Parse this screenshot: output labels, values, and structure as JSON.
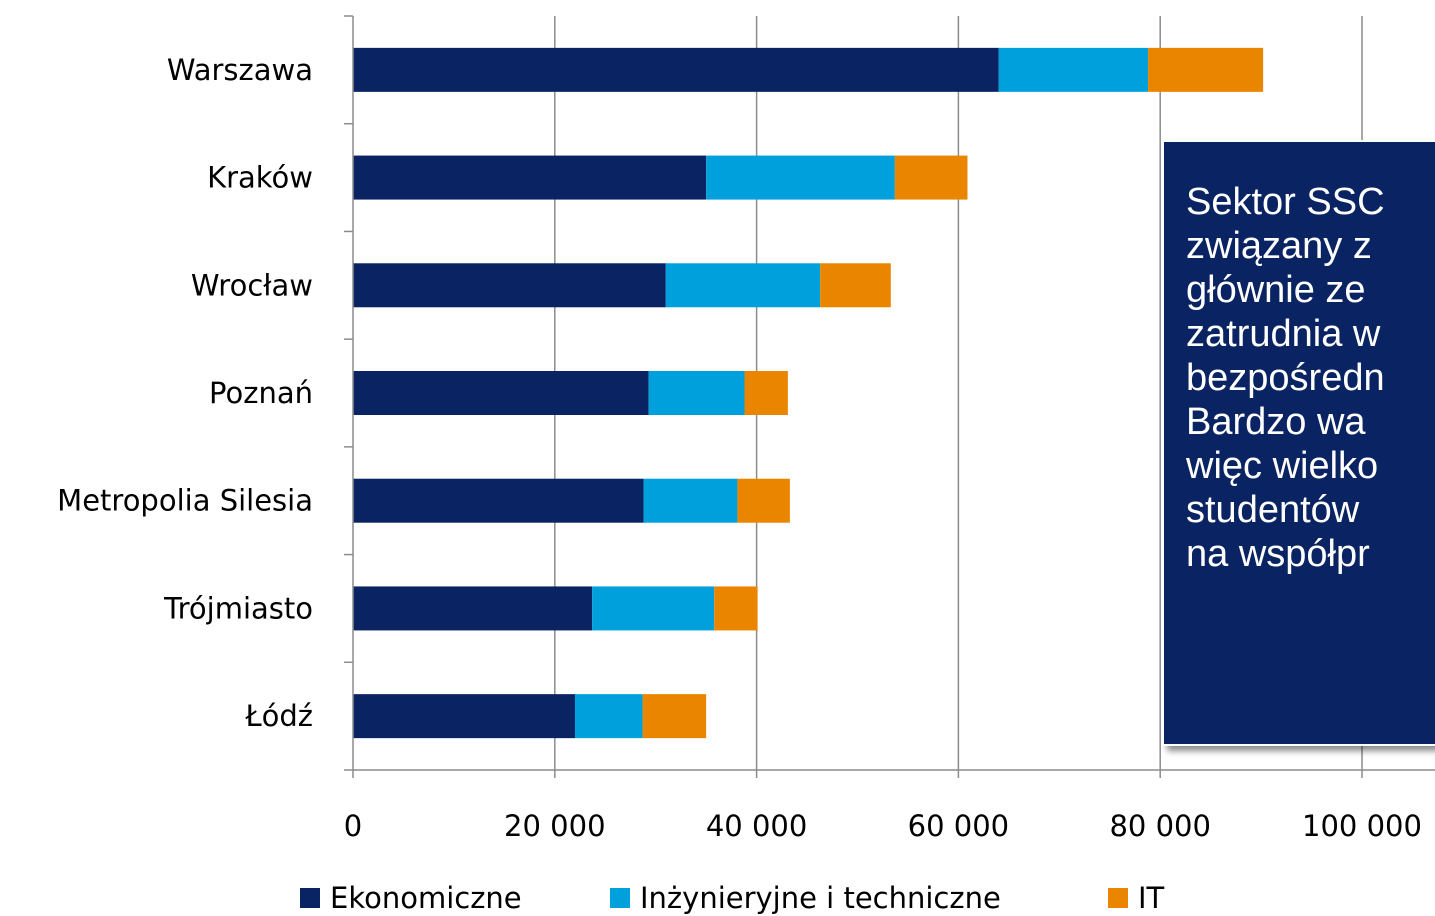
{
  "chart_data": {
    "type": "bar",
    "orientation": "horizontal",
    "stacked": true,
    "categories": [
      "Warszawa",
      "Kraków",
      "Wrocław",
      "Poznań",
      "Metropolia Silesia",
      "Trójmiasto",
      "Łódź"
    ],
    "series": [
      {
        "name": "Ekonomiczne",
        "color": "#0a2463",
        "values": [
          64000,
          35000,
          31000,
          29300,
          28800,
          23700,
          22000
        ]
      },
      {
        "name": "Inżynieryjne i techniczne",
        "color": "#00a0dc",
        "values": [
          14800,
          18700,
          15300,
          9500,
          9300,
          12100,
          6700
        ]
      },
      {
        "name": "IT",
        "color": "#ea8500",
        "values": [
          11400,
          7200,
          7000,
          4300,
          5200,
          4300,
          6300
        ]
      }
    ],
    "xlim": [
      0,
      100000
    ],
    "xticks": [
      0,
      20000,
      40000,
      60000,
      80000,
      100000
    ],
    "xtick_labels": [
      "0",
      "20 000",
      "40 000",
      "60 000",
      "80 000",
      "100 000"
    ],
    "grid": true,
    "legend_position": "bottom"
  },
  "callout": {
    "lines": [
      "Sektor SSC",
      "związany z",
      "głównie ze",
      "zatrudnia w",
      "bezpośredn",
      "Bardzo wa",
      "więc wielko",
      "studentów",
      "na współpr"
    ]
  }
}
